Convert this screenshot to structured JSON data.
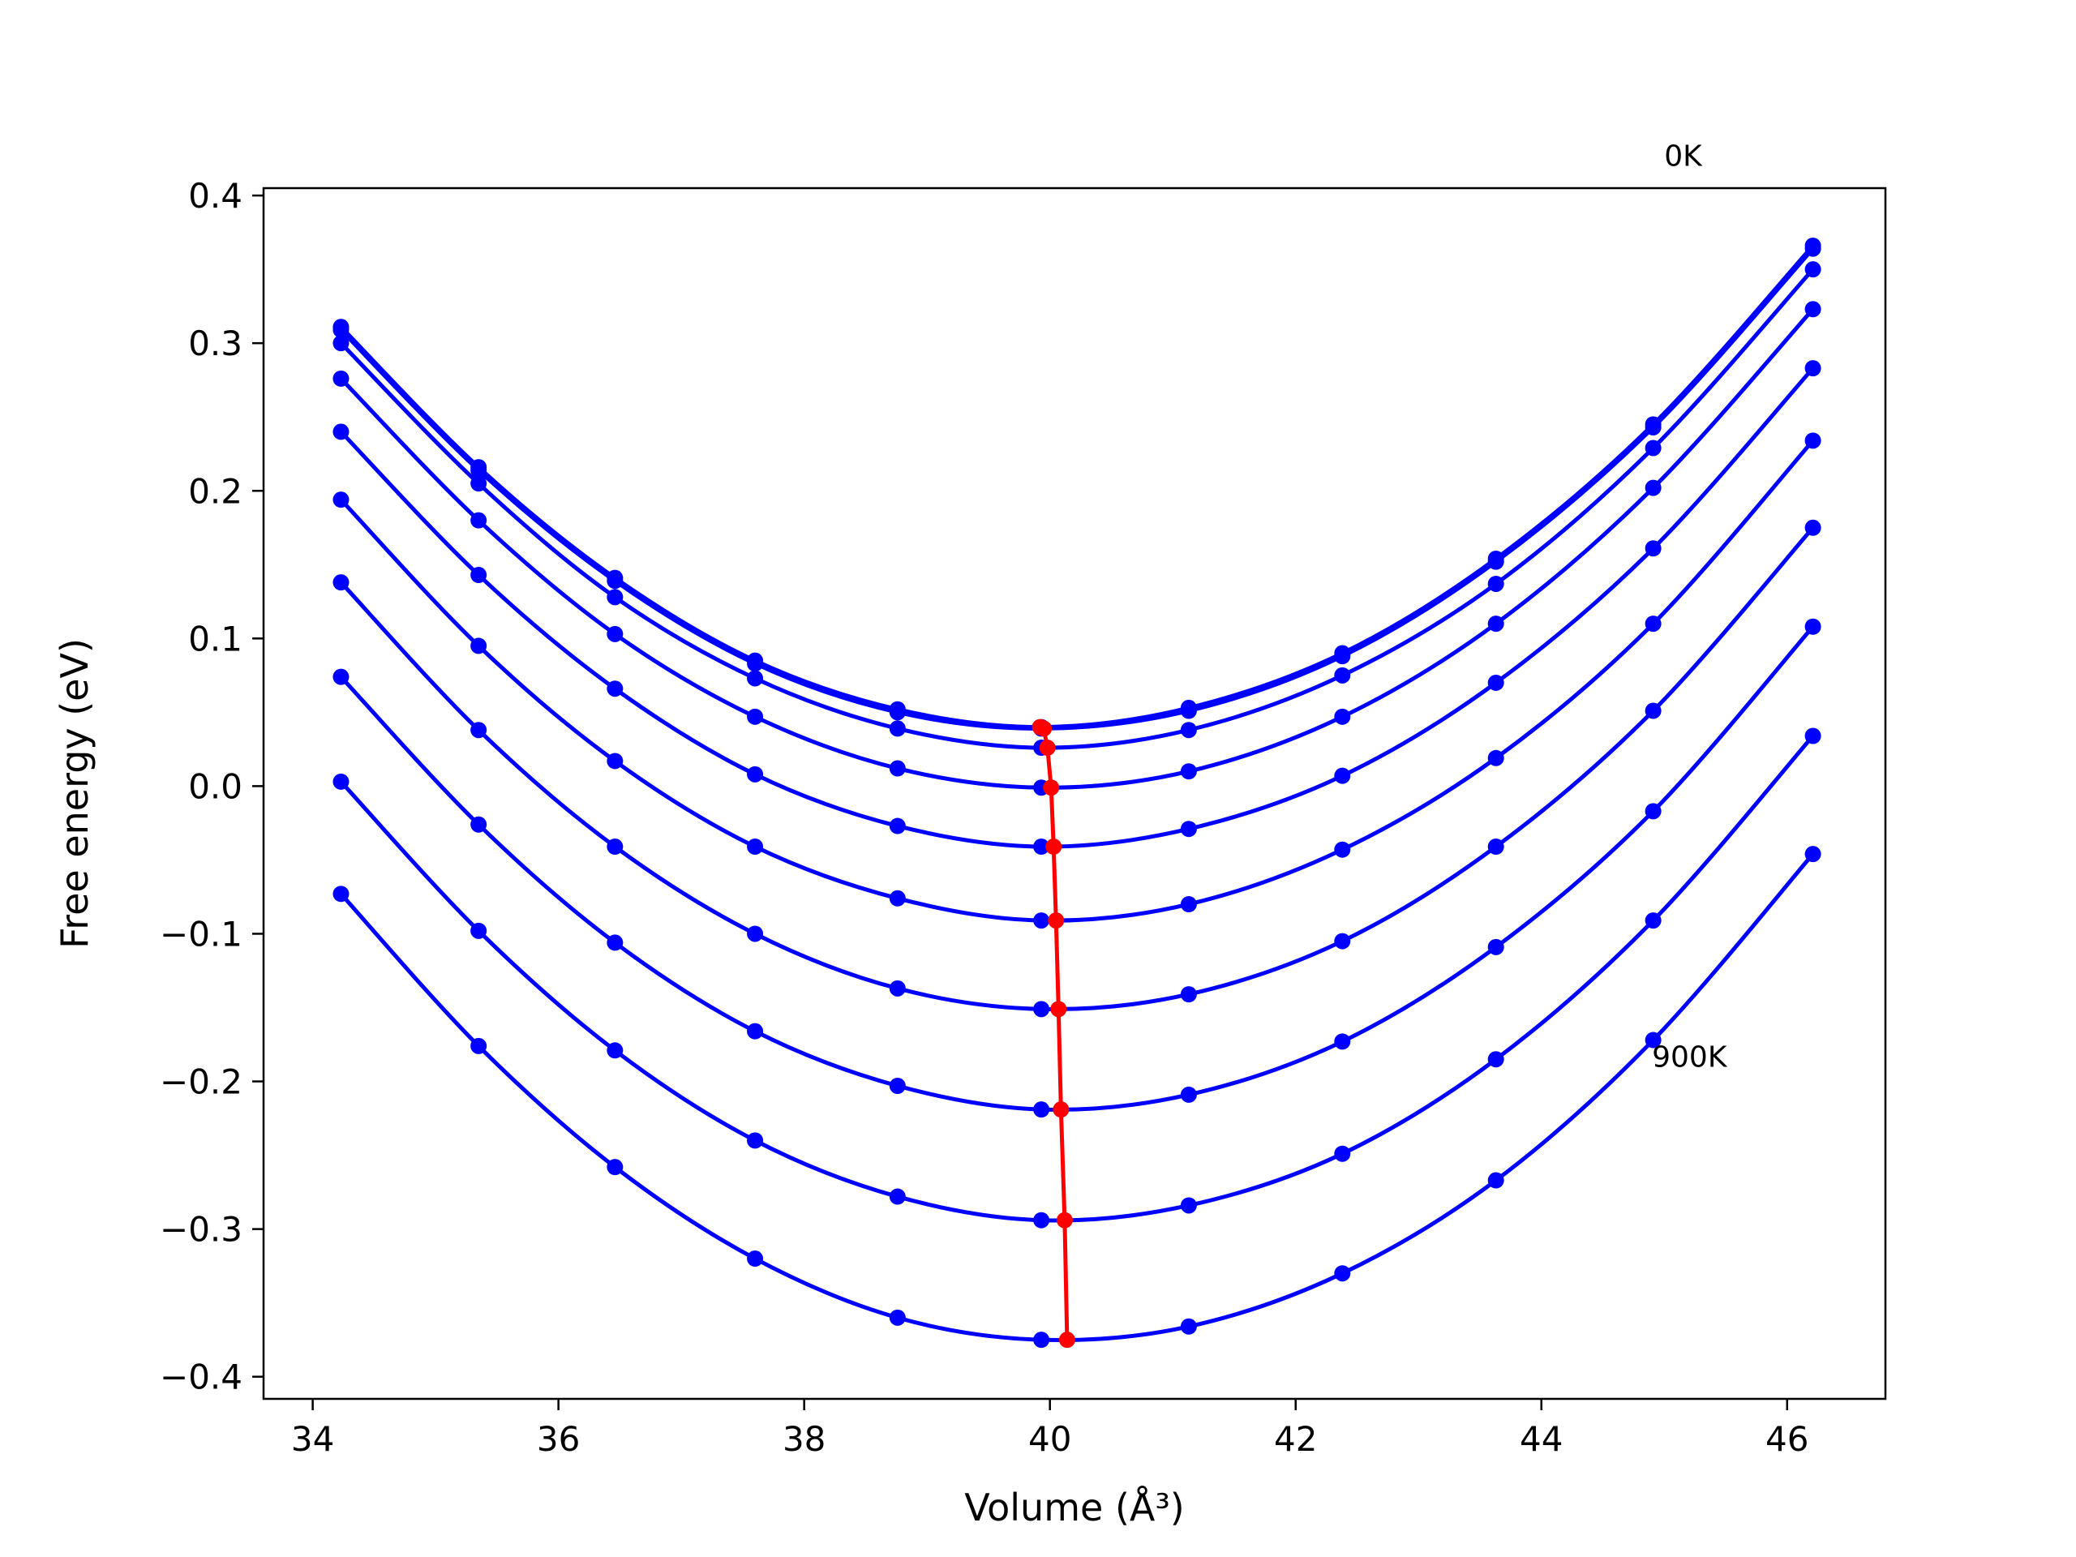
{
  "chart_data": {
    "type": "line",
    "xlabel": "Volume (Å³)",
    "ylabel": "Free energy (eV)",
    "xlim": [
      33.6,
      46.8
    ],
    "ylim": [
      -0.415,
      0.405
    ],
    "xticks": [
      34,
      36,
      38,
      40,
      42,
      44,
      46
    ],
    "yticks": [
      -0.4,
      -0.3,
      -0.2,
      -0.1,
      0.0,
      0.1,
      0.2,
      0.3,
      0.4
    ],
    "xtick_labels": [
      "34",
      "36",
      "38",
      "40",
      "42",
      "44",
      "46"
    ],
    "ytick_labels": [
      "−0.4",
      "−0.3",
      "−0.2",
      "−0.1",
      "0.0",
      "0.1",
      "0.2",
      "0.3",
      "0.4"
    ],
    "grid": false,
    "annotations": [
      {
        "text": "0K",
        "x": 45.0,
        "y": 0.42
      },
      {
        "text": "900K",
        "x": 44.9,
        "y": -0.19
      }
    ],
    "x": [
      34.23,
      35.35,
      36.46,
      37.6,
      38.76,
      39.93,
      41.13,
      42.38,
      43.63,
      44.91,
      46.21
    ],
    "series": [
      {
        "values": [
          0.311,
          0.216,
          0.141,
          0.085,
          0.052,
          0.04,
          0.053,
          0.09,
          0.154,
          0.245,
          0.366
        ]
      },
      {
        "values": [
          0.309,
          0.214,
          0.139,
          0.083,
          0.05,
          0.039,
          0.051,
          0.088,
          0.152,
          0.243,
          0.364
        ]
      },
      {
        "values": [
          0.3,
          0.205,
          0.128,
          0.073,
          0.039,
          0.026,
          0.038,
          0.075,
          0.137,
          0.229,
          0.35
        ]
      },
      {
        "values": [
          0.276,
          0.18,
          0.103,
          0.047,
          0.012,
          -0.001,
          0.01,
          0.047,
          0.11,
          0.202,
          0.323
        ]
      },
      {
        "values": [
          0.24,
          0.143,
          0.066,
          0.008,
          -0.027,
          -0.041,
          -0.029,
          0.007,
          0.07,
          0.161,
          0.283
        ]
      },
      {
        "values": [
          0.194,
          0.095,
          0.017,
          -0.041,
          -0.076,
          -0.091,
          -0.08,
          -0.043,
          0.019,
          0.11,
          0.234
        ]
      },
      {
        "values": [
          0.138,
          0.038,
          -0.041,
          -0.1,
          -0.137,
          -0.151,
          -0.141,
          -0.105,
          -0.041,
          0.051,
          0.175
        ]
      },
      {
        "values": [
          0.074,
          -0.026,
          -0.106,
          -0.166,
          -0.203,
          -0.219,
          -0.209,
          -0.173,
          -0.109,
          -0.017,
          0.108
        ]
      },
      {
        "values": [
          0.003,
          -0.098,
          -0.179,
          -0.24,
          -0.278,
          -0.294,
          -0.284,
          -0.249,
          -0.185,
          -0.091,
          0.034
        ]
      },
      {
        "values": [
          -0.073,
          -0.176,
          -0.258,
          -0.32,
          -0.36,
          -0.375,
          -0.366,
          -0.33,
          -0.267,
          -0.172,
          -0.046
        ]
      }
    ],
    "minima": {
      "x": [
        39.92,
        39.95,
        39.98,
        40.01,
        40.03,
        40.05,
        40.07,
        40.09,
        40.12,
        40.14
      ],
      "y": [
        0.04,
        0.039,
        0.026,
        -0.001,
        -0.041,
        -0.091,
        -0.151,
        -0.219,
        -0.294,
        -0.375
      ]
    },
    "colors": {
      "curves": "#0000ff",
      "minima": "#ff0000",
      "frame": "#000000"
    }
  }
}
